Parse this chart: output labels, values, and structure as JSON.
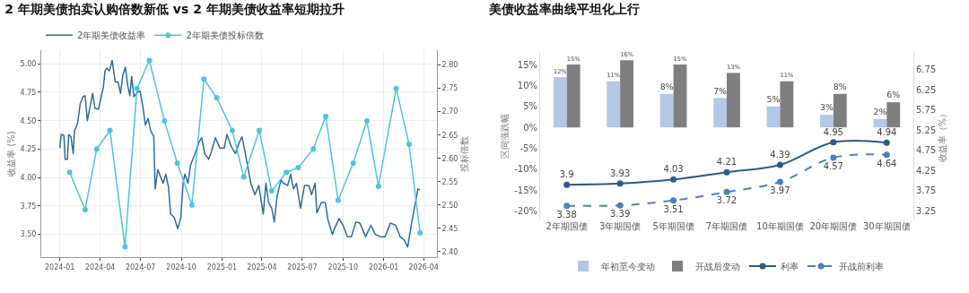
{
  "chart_data": [
    {
      "type": "line",
      "title": "2 年期美债拍卖认购倍数新低 vs 2 年期美债收益率短期拉升",
      "ylabel": "收益率 (%)",
      "y2label": "投标倍数",
      "legend": "top left",
      "grid": true,
      "xlim": [
        "2023-11-20",
        "2026-05-01"
      ],
      "xticks": [
        "2024-01",
        "2024-04",
        "2024-07",
        "2024-10",
        "2025-01",
        "2025-04",
        "2025-07",
        "2025-10",
        "2026-01",
        "2026-04"
      ],
      "ylim": [
        3.3,
        5.12
      ],
      "yticks": [
        {
          "value": 3.5,
          "label": "3.50"
        },
        {
          "value": 3.75,
          "label": "3.75"
        },
        {
          "value": 4,
          "label": "4.00"
        },
        {
          "value": 4.25,
          "label": "4.25"
        },
        {
          "value": 4.5,
          "label": "4.50"
        },
        {
          "value": 4.75,
          "label": "4.75"
        },
        {
          "value": 5,
          "label": "5.00"
        }
      ],
      "y2lim": [
        2.388,
        2.832
      ],
      "y2ticks": [
        {
          "value": 2.4,
          "label": "2.40"
        },
        2.45,
        {
          "value": 2.5,
          "label": "2.50"
        },
        2.55,
        {
          "value": 2.6,
          "label": "2.60"
        },
        2.65,
        {
          "value": 2.7,
          "label": "2.70"
        },
        2.75,
        {
          "value": 2.8,
          "label": "2.80"
        }
      ],
      "series": [
        {
          "name": "2年期美债收益率",
          "color": "#2f6b9a",
          "marker": "none",
          "x": [
            "2024-01-01",
            "2024-01-04",
            "2024-01-10",
            "2024-01-13",
            "2024-01-18",
            "2024-01-21",
            "2024-01-26",
            "2024-01-31",
            "2024-02-03",
            "2024-02-10",
            "2024-02-16",
            "2024-02-22",
            "2024-02-27",
            "2024-03-03",
            "2024-03-09",
            "2024-03-15",
            "2024-03-20",
            "2024-03-28",
            "2024-04-03",
            "2024-04-08",
            "2024-04-12",
            "2024-04-16",
            "2024-04-22",
            "2024-04-28",
            "2024-05-05",
            "2024-05-11",
            "2024-05-17",
            "2024-05-22",
            "2024-05-28",
            "2024-06-02",
            "2024-06-07",
            "2024-06-11",
            "2024-06-16",
            "2024-06-24",
            "2024-06-30",
            "2024-07-06",
            "2024-07-12",
            "2024-07-18",
            "2024-07-24",
            "2024-07-31",
            "2024-08-03",
            "2024-08-09",
            "2024-08-15",
            "2024-08-21",
            "2024-08-27",
            "2024-09-02",
            "2024-09-07",
            "2024-09-15",
            "2024-09-23",
            "2024-09-30",
            "2024-10-05",
            "2024-10-09",
            "2024-10-16",
            "2024-10-22",
            "2024-11-01",
            "2024-11-10",
            "2024-11-16",
            "2024-11-23",
            "2024-12-02",
            "2024-12-08",
            "2024-12-17",
            "2024-12-27",
            "2025-01-06",
            "2025-01-12",
            "2025-01-21",
            "2025-01-31",
            "2025-02-09",
            "2025-02-15",
            "2025-02-25",
            "2025-03-07",
            "2025-03-16",
            "2025-03-25",
            "2025-04-04",
            "2025-04-10",
            "2025-04-16",
            "2025-04-23",
            "2025-04-29",
            "2025-05-05",
            "2025-05-14",
            "2025-05-20",
            "2025-05-29",
            "2025-06-05",
            "2025-06-11",
            "2025-06-18",
            "2025-06-27",
            "2025-07-06",
            "2025-07-16",
            "2025-07-22",
            "2025-07-30",
            "2025-08-03",
            "2025-08-13",
            "2025-08-22",
            "2025-08-28",
            "2025-09-07",
            "2025-09-13",
            "2025-09-22",
            "2025-10-01",
            "2025-10-11",
            "2025-10-20",
            "2025-10-30",
            "2025-11-08",
            "2025-11-21",
            "2025-12-03",
            "2025-12-13",
            "2025-12-25",
            "2026-01-04",
            "2026-01-16",
            "2026-01-28",
            "2026-02-07",
            "2026-02-16",
            "2026-02-24",
            "2026-03-04",
            "2026-03-12",
            "2026-03-19",
            "2026-03-24"
          ],
          "values": [
            4.26,
            4.38,
            4.37,
            4.16,
            4.16,
            4.38,
            4.36,
            4.21,
            4.41,
            4.48,
            4.65,
            4.71,
            4.72,
            4.5,
            4.62,
            4.74,
            4.61,
            4.6,
            4.71,
            4.79,
            4.94,
            4.96,
            4.94,
            5.03,
            4.84,
            4.84,
            4.74,
            4.9,
            4.97,
            4.81,
            4.72,
            4.89,
            4.71,
            4.75,
            4.76,
            4.63,
            4.46,
            4.52,
            4.41,
            4.36,
            3.9,
            4.07,
            4.01,
            3.95,
            4.03,
            3.92,
            3.68,
            3.65,
            3.55,
            3.65,
            3.95,
            4.03,
            3.95,
            4.11,
            4.21,
            4.31,
            4.35,
            4.21,
            4.16,
            4.23,
            4.35,
            4.26,
            4.26,
            4.38,
            4.28,
            4.21,
            4.31,
            4.36,
            4.16,
            3.95,
            3.85,
            3.93,
            3.68,
            3.95,
            3.78,
            3.73,
            3.61,
            3.83,
            3.98,
            3.95,
            3.93,
            4.03,
            3.9,
            3.95,
            3.73,
            3.93,
            3.93,
            3.85,
            3.95,
            3.69,
            3.78,
            3.78,
            3.63,
            3.5,
            3.56,
            3.64,
            3.58,
            3.48,
            3.48,
            3.61,
            3.6,
            3.48,
            3.58,
            3.5,
            3.48,
            3.48,
            3.6,
            3.58,
            3.48,
            3.45,
            3.39,
            3.58,
            3.75,
            3.9,
            3.89
          ]
        },
        {
          "name": "2年期美债投标倍数",
          "color": "#4fc3e0",
          "marker": "circle",
          "axis": "y2",
          "x": [
            "2024-01-23",
            "2024-02-27",
            "2024-03-24",
            "2024-04-23",
            "2024-05-27",
            "2024-06-23",
            "2024-07-21",
            "2024-08-24",
            "2024-09-22",
            "2024-10-25",
            "2024-11-21",
            "2024-12-20",
            "2025-01-24",
            "2025-02-19",
            "2025-03-26",
            "2025-04-23",
            "2025-05-26",
            "2025-06-22",
            "2025-07-26",
            "2025-08-23",
            "2025-09-20",
            "2025-10-24",
            "2025-11-24",
            "2025-12-20",
            "2026-01-29",
            "2026-02-27",
            "2026-03-24"
          ],
          "values": [
            2.57,
            2.49,
            2.62,
            2.66,
            2.41,
            2.75,
            2.81,
            2.68,
            2.59,
            2.5,
            2.77,
            2.73,
            2.66,
            2.56,
            2.66,
            2.53,
            2.57,
            2.58,
            2.62,
            2.69,
            2.51,
            2.59,
            2.68,
            2.54,
            2.75,
            2.63,
            2.44
          ]
        }
      ]
    },
    {
      "type": "bar",
      "title": "美债收益率曲线平坦化上行",
      "ylabel": "区间涨跌幅",
      "y2label": "收益率（%）",
      "legend": "bottom",
      "grid": false,
      "categories": [
        "2年期国债",
        "3年期国债",
        "5年期国债",
        "7年期国债",
        "10年期国债",
        "20年期国债",
        "30年期国债"
      ],
      "ylim": [
        -22,
        18
      ],
      "yticks": [
        {
          "value": -20,
          "label": "-20%"
        },
        {
          "value": -15,
          "label": "-15%"
        },
        {
          "value": -10,
          "label": "-10%"
        },
        {
          "value": -5,
          "label": "-5%"
        },
        {
          "value": 0,
          "label": "0%"
        },
        {
          "value": 5,
          "label": "5%"
        },
        {
          "value": 10,
          "label": "10%"
        },
        {
          "value": 15,
          "label": "15%"
        }
      ],
      "y2lim": [
        3.04,
        7.18
      ],
      "y2ticks": [
        3.25,
        3.75,
        4.25,
        4.75,
        5.25,
        5.75,
        6.25,
        6.75
      ],
      "series": [
        {
          "name": "年初至今变动",
          "color": "#b4c7e7",
          "values": [
            12,
            11,
            8,
            7,
            5,
            3,
            2
          ],
          "value_labels": [
            "12%",
            "11%",
            "8%",
            "7%",
            "5%",
            "3%",
            "2%"
          ]
        },
        {
          "name": "开战后变动",
          "color": "#7f7f7f",
          "values": [
            15,
            16,
            15,
            13,
            11,
            8,
            6
          ],
          "value_labels": [
            "15%",
            "16%",
            "15%",
            "13%",
            "11%",
            "8%",
            "6%"
          ]
        },
        {
          "name": "利率",
          "type": "line",
          "axis": "y2",
          "color": "#2e5a88",
          "marker": "circle",
          "line_style": "solid",
          "values": [
            3.9,
            3.93,
            4.03,
            4.21,
            4.39,
            4.95,
            4.94
          ],
          "value_labels": [
            "3.9",
            "3.93",
            "4.03",
            "4.21",
            "4.39",
            "4.95",
            "4.94"
          ]
        },
        {
          "name": "开战前利率",
          "type": "line",
          "axis": "y2",
          "color": "#4a82c0",
          "marker": "circle",
          "line_style": "dashed",
          "values": [
            3.38,
            3.39,
            3.51,
            3.72,
            3.97,
            4.57,
            4.64
          ],
          "value_labels": [
            "3.38",
            "3.39",
            "3.51",
            "3.72",
            "3.97",
            "4.57",
            "4.64"
          ]
        }
      ]
    }
  ]
}
